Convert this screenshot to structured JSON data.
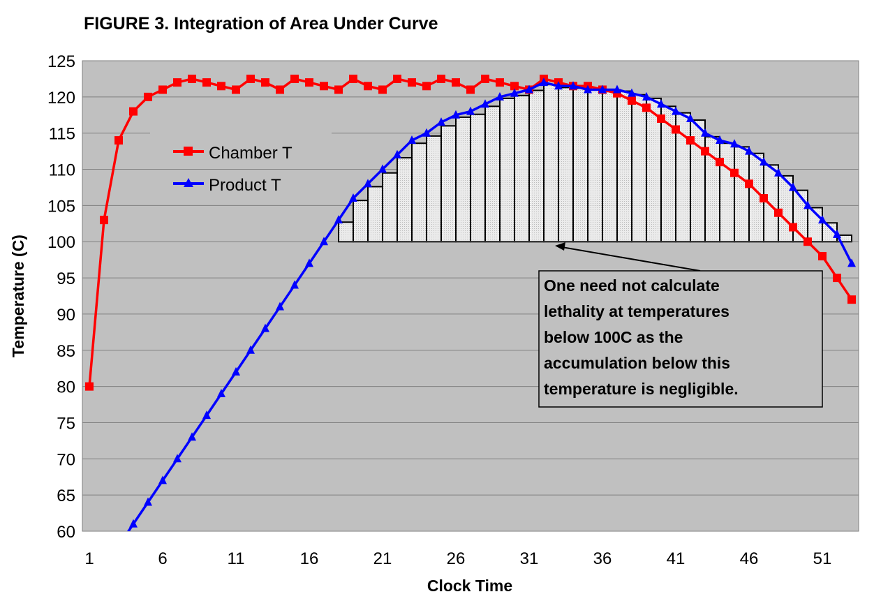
{
  "chart_data": {
    "type": "line",
    "title": "FIGURE 3. Integration of Area Under Curve",
    "xlabel": "Clock Time",
    "ylabel": "Temperature (C)",
    "xlim": [
      1,
      53
    ],
    "ylim": [
      60,
      125
    ],
    "xticks": [
      1,
      6,
      11,
      16,
      21,
      26,
      31,
      36,
      41,
      46,
      51
    ],
    "yticks": [
      60,
      65,
      70,
      75,
      80,
      85,
      90,
      95,
      100,
      105,
      110,
      115,
      120,
      125
    ],
    "grid": true,
    "legend_placement": "upper-left inside",
    "plot_background": "#c0c0c0",
    "series": [
      {
        "name": "Chamber T",
        "color": "#ff0000",
        "marker": "square",
        "x": [
          1,
          2,
          3,
          4,
          5,
          6,
          7,
          8,
          9,
          10,
          11,
          12,
          13,
          14,
          15,
          16,
          17,
          18,
          19,
          20,
          21,
          22,
          23,
          24,
          25,
          26,
          27,
          28,
          29,
          30,
          31,
          32,
          33,
          34,
          35,
          36,
          37,
          38,
          39,
          40,
          41,
          42,
          43,
          44,
          45,
          46,
          47,
          48,
          49,
          50,
          51,
          52,
          53
        ],
        "values": [
          80,
          103,
          114,
          118,
          120,
          121,
          122,
          122.5,
          122,
          121.5,
          121,
          122.5,
          122,
          121,
          122.5,
          122,
          121.5,
          121,
          122.5,
          121.5,
          121,
          122.5,
          122,
          121.5,
          122.5,
          122,
          121,
          122.5,
          122,
          121.5,
          121,
          122.5,
          122,
          121.5,
          121.5,
          121,
          120.5,
          119.5,
          118.5,
          117,
          115.5,
          114,
          112.5,
          111,
          109.5,
          108,
          106,
          104,
          102,
          100,
          98,
          95,
          92
        ]
      },
      {
        "name": "Product T",
        "color": "#0000ff",
        "marker": "triangle",
        "x": [
          3,
          4,
          5,
          6,
          7,
          8,
          9,
          10,
          11,
          12,
          13,
          14,
          15,
          16,
          17,
          18,
          19,
          20,
          21,
          22,
          23,
          24,
          25,
          26,
          27,
          28,
          29,
          30,
          31,
          32,
          33,
          34,
          35,
          36,
          37,
          38,
          39,
          40,
          41,
          42,
          43,
          44,
          45,
          46,
          47,
          48,
          49,
          50,
          51,
          52,
          53
        ],
        "values": [
          58,
          61,
          64,
          67,
          70,
          73,
          76,
          79,
          82,
          85,
          88,
          91,
          94,
          97,
          100,
          103,
          106,
          108,
          110,
          112,
          114,
          115,
          116.5,
          117.5,
          118,
          119,
          120,
          120.5,
          121,
          122,
          121.5,
          121.5,
          121,
          121,
          121,
          120.5,
          120,
          119,
          118,
          117,
          115,
          114,
          113.5,
          112.5,
          111,
          109.5,
          107.5,
          105,
          103,
          101,
          97
        ]
      }
    ],
    "area_bars": {
      "baseline": 100,
      "x_start": [
        18,
        19,
        20,
        21,
        22,
        23,
        24,
        25,
        26,
        27,
        28,
        29,
        30,
        31,
        32,
        33,
        34,
        35,
        36,
        37,
        38,
        39,
        40,
        41,
        42,
        43,
        44,
        45,
        46,
        47,
        48,
        49,
        50,
        51,
        52
      ],
      "values": [
        102.7,
        105.7,
        107.6,
        109.5,
        111.6,
        113.6,
        114.6,
        116,
        117.2,
        117.6,
        118.7,
        119.8,
        120.2,
        120.9,
        121.7,
        121.3,
        121.2,
        121,
        120.9,
        120.8,
        120.3,
        119.8,
        118.7,
        117.8,
        116.8,
        114.5,
        113.6,
        113.1,
        112.2,
        110.6,
        109.1,
        107.1,
        104.7,
        102.6,
        100.9
      ]
    },
    "annotation": "One need not calculate lethality at temperatures below 100C as the accumulation below this temperature is negligible."
  }
}
